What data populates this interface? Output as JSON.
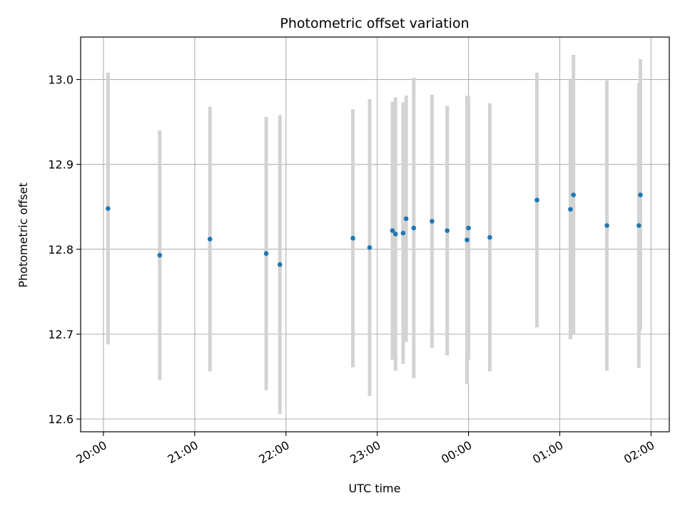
{
  "chart_data": {
    "type": "scatter",
    "title": "Photometric offset variation",
    "xlabel": "UTC time",
    "ylabel": "Photometric offset",
    "x_ticks": [
      "20:00",
      "21:00",
      "22:00",
      "23:00",
      "00:00",
      "01:00",
      "02:00"
    ],
    "x_tick_hours": [
      0,
      1,
      2,
      3,
      4,
      5,
      6
    ],
    "xlim_hours": [
      -0.25,
      6.2
    ],
    "y_ticks": [
      "12.6",
      "12.7",
      "12.8",
      "12.9",
      "13.0"
    ],
    "y_tick_values": [
      12.6,
      12.7,
      12.8,
      12.9,
      13.0
    ],
    "ylim": [
      12.585,
      13.05
    ],
    "grid": true,
    "marker_color": "#1f77b4",
    "errorbar_color": "#d3d3d3",
    "points": [
      {
        "x": "20:03",
        "y": 12.848,
        "yerr": 0.16
      },
      {
        "x": "20:37",
        "y": 12.793,
        "yerr": 0.147
      },
      {
        "x": "21:10",
        "y": 12.812,
        "yerr": 0.156
      },
      {
        "x": "21:47",
        "y": 12.795,
        "yerr": 0.161
      },
      {
        "x": "21:56",
        "y": 12.782,
        "yerr": 0.176
      },
      {
        "x": "22:44",
        "y": 12.813,
        "yerr": 0.152
      },
      {
        "x": "22:55",
        "y": 12.802,
        "yerr": 0.175
      },
      {
        "x": "23:10",
        "y": 12.822,
        "yerr": 0.152
      },
      {
        "x": "23:12",
        "y": 12.818,
        "yerr": 0.161
      },
      {
        "x": "23:17",
        "y": 12.819,
        "yerr": 0.154
      },
      {
        "x": "23:19",
        "y": 12.836,
        "yerr": 0.145
      },
      {
        "x": "23:24",
        "y": 12.825,
        "yerr": 0.177
      },
      {
        "x": "23:36",
        "y": 12.833,
        "yerr": 0.149
      },
      {
        "x": "23:46",
        "y": 12.822,
        "yerr": 0.147
      },
      {
        "x": "23:59",
        "y": 12.811,
        "yerr": 0.17
      },
      {
        "x": "00:00",
        "y": 12.825,
        "yerr": 0.155
      },
      {
        "x": "00:14",
        "y": 12.814,
        "yerr": 0.158
      },
      {
        "x": "00:45",
        "y": 12.858,
        "yerr": 0.15
      },
      {
        "x": "01:07",
        "y": 12.847,
        "yerr": 0.153
      },
      {
        "x": "01:09",
        "y": 12.864,
        "yerr": 0.165
      },
      {
        "x": "01:31",
        "y": 12.828,
        "yerr": 0.171
      },
      {
        "x": "01:52",
        "y": 12.828,
        "yerr": 0.168
      },
      {
        "x": "01:53",
        "y": 12.864,
        "yerr": 0.16
      }
    ]
  }
}
